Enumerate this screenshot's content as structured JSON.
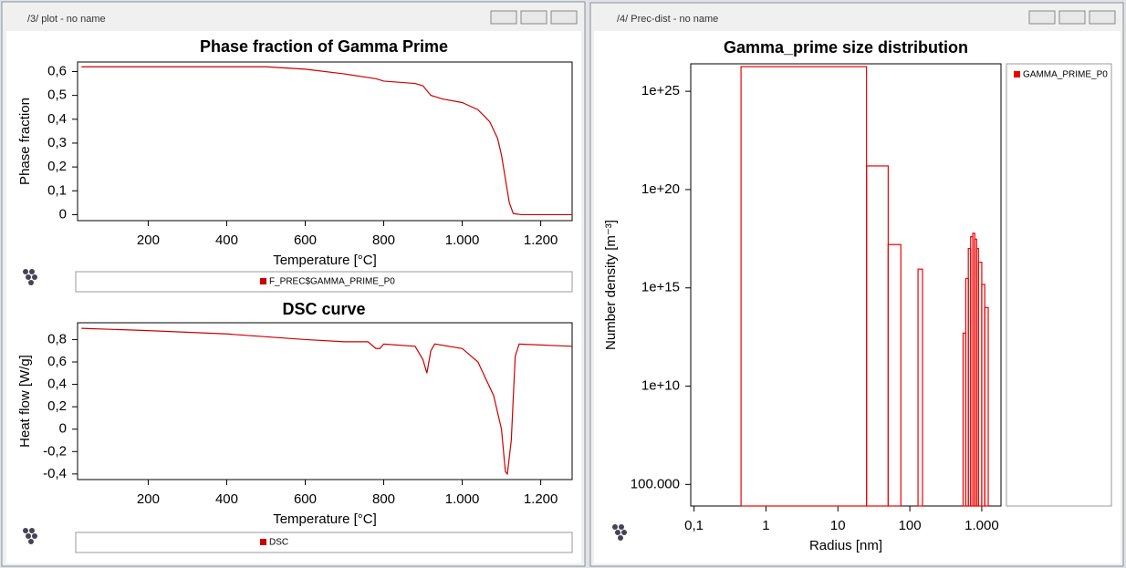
{
  "windows": [
    {
      "title": "/3/ plot - no name"
    },
    {
      "title": "/4/ Prec-dist - no name"
    }
  ],
  "chart_data": [
    {
      "type": "line",
      "title": "Phase fraction of Gamma Prime",
      "x_label": "Temperature [°C]",
      "y_label": "Phase fraction",
      "x": [
        30,
        500,
        600,
        700,
        780,
        800,
        880,
        900,
        920,
        950,
        1000,
        1040,
        1070,
        1090,
        1100,
        1110,
        1120,
        1130,
        1150,
        1280
      ],
      "series": [
        {
          "name": "F_PREC$GAMMA_PRIME_P0",
          "color": "#cc0000",
          "values": [
            0.62,
            0.62,
            0.61,
            0.59,
            0.57,
            0.56,
            0.55,
            0.54,
            0.5,
            0.485,
            0.47,
            0.44,
            0.39,
            0.32,
            0.25,
            0.15,
            0.05,
            0.005,
            0,
            0
          ]
        }
      ],
      "xlim": [
        20,
        1280
      ],
      "ylim": [
        -0.025,
        0.64
      ],
      "xticks": [
        200,
        400,
        600,
        800,
        {
          "value": 1000,
          "label": "1.000"
        },
        {
          "value": 1200,
          "label": "1.200"
        }
      ],
      "yticks": [
        0,
        {
          "value": 0.1,
          "label": "0,1"
        },
        {
          "value": 0.2,
          "label": "0,2"
        },
        {
          "value": 0.3,
          "label": "0,3"
        },
        {
          "value": 0.4,
          "label": "0,4"
        },
        {
          "value": 0.5,
          "label": "0,5"
        },
        {
          "value": 0.6,
          "label": "0,6"
        }
      ]
    },
    {
      "type": "line",
      "title": "DSC curve",
      "x_label": "Temperature [°C]",
      "y_label": "Heat flow [W/g]",
      "x": [
        30,
        200,
        400,
        600,
        700,
        760,
        780,
        790,
        800,
        880,
        900,
        910,
        920,
        930,
        1000,
        1040,
        1080,
        1100,
        1110,
        1115,
        1125,
        1135,
        1145,
        1280
      ],
      "series": [
        {
          "name": "DSC",
          "color": "#cc0000",
          "values": [
            0.9,
            0.88,
            0.85,
            0.8,
            0.78,
            0.78,
            0.72,
            0.72,
            0.76,
            0.74,
            0.62,
            0.5,
            0.7,
            0.76,
            0.72,
            0.6,
            0.3,
            0,
            -0.38,
            -0.4,
            -0.1,
            0.65,
            0.76,
            0.74
          ]
        }
      ],
      "xlim": [
        20,
        1280
      ],
      "ylim": [
        -0.45,
        0.95
      ],
      "xticks": [
        200,
        400,
        600,
        800,
        {
          "value": 1000,
          "label": "1.000"
        },
        {
          "value": 1200,
          "label": "1.200"
        }
      ],
      "yticks": [
        {
          "value": -0.4,
          "label": "-0,4"
        },
        {
          "value": -0.2,
          "label": "-0,2"
        },
        0,
        {
          "value": 0.2,
          "label": "0,2"
        },
        {
          "value": 0.4,
          "label": "0,4"
        },
        {
          "value": 0.6,
          "label": "0,6"
        },
        {
          "value": 0.8,
          "label": "0,8"
        }
      ]
    },
    {
      "type": "histogram",
      "title": "Gamma_prime size distribution",
      "x_label": "Radius [nm]",
      "y_label": "Number density [m⁻³]",
      "xlog": true,
      "ylog": true,
      "bins": [
        0.45,
        25,
        50,
        75,
        130,
        150,
        550,
        600,
        650,
        700,
        750,
        800,
        850,
        900,
        1000,
        1100,
        1230
      ],
      "series": [
        {
          "name": "GAMMA_PRIME_P0",
          "color": "#ee0000",
          "values": [
            1.8e+26,
            1.6e+21,
            1.6e+17,
            null,
            9000000000000000.0,
            null,
            5000000000000.0,
            3000000000000000.0,
            1e+17,
            4e+17,
            6e+17,
            3e+17,
            1e+17,
            2e+16,
            1500000000000000.0,
            100000000000000.0
          ]
        }
      ],
      "xlim": [
        0.09,
        1850
      ],
      "ylim": [
        8000,
        2.5e+26
      ],
      "xticks": [
        {
          "value": 0.1,
          "label": "0,1"
        },
        1,
        10,
        100,
        {
          "value": 1000,
          "label": "1.000"
        }
      ],
      "yticks": [
        {
          "value": 100000,
          "label": "100.000"
        },
        {
          "value": 10000000000.0,
          "label": "1e+10"
        },
        {
          "value": 1000000000000000.0,
          "label": "1e+15"
        },
        {
          "value": 1e+20,
          "label": "1e+20"
        },
        {
          "value": 1e+25,
          "label": "1e+25"
        }
      ]
    }
  ]
}
